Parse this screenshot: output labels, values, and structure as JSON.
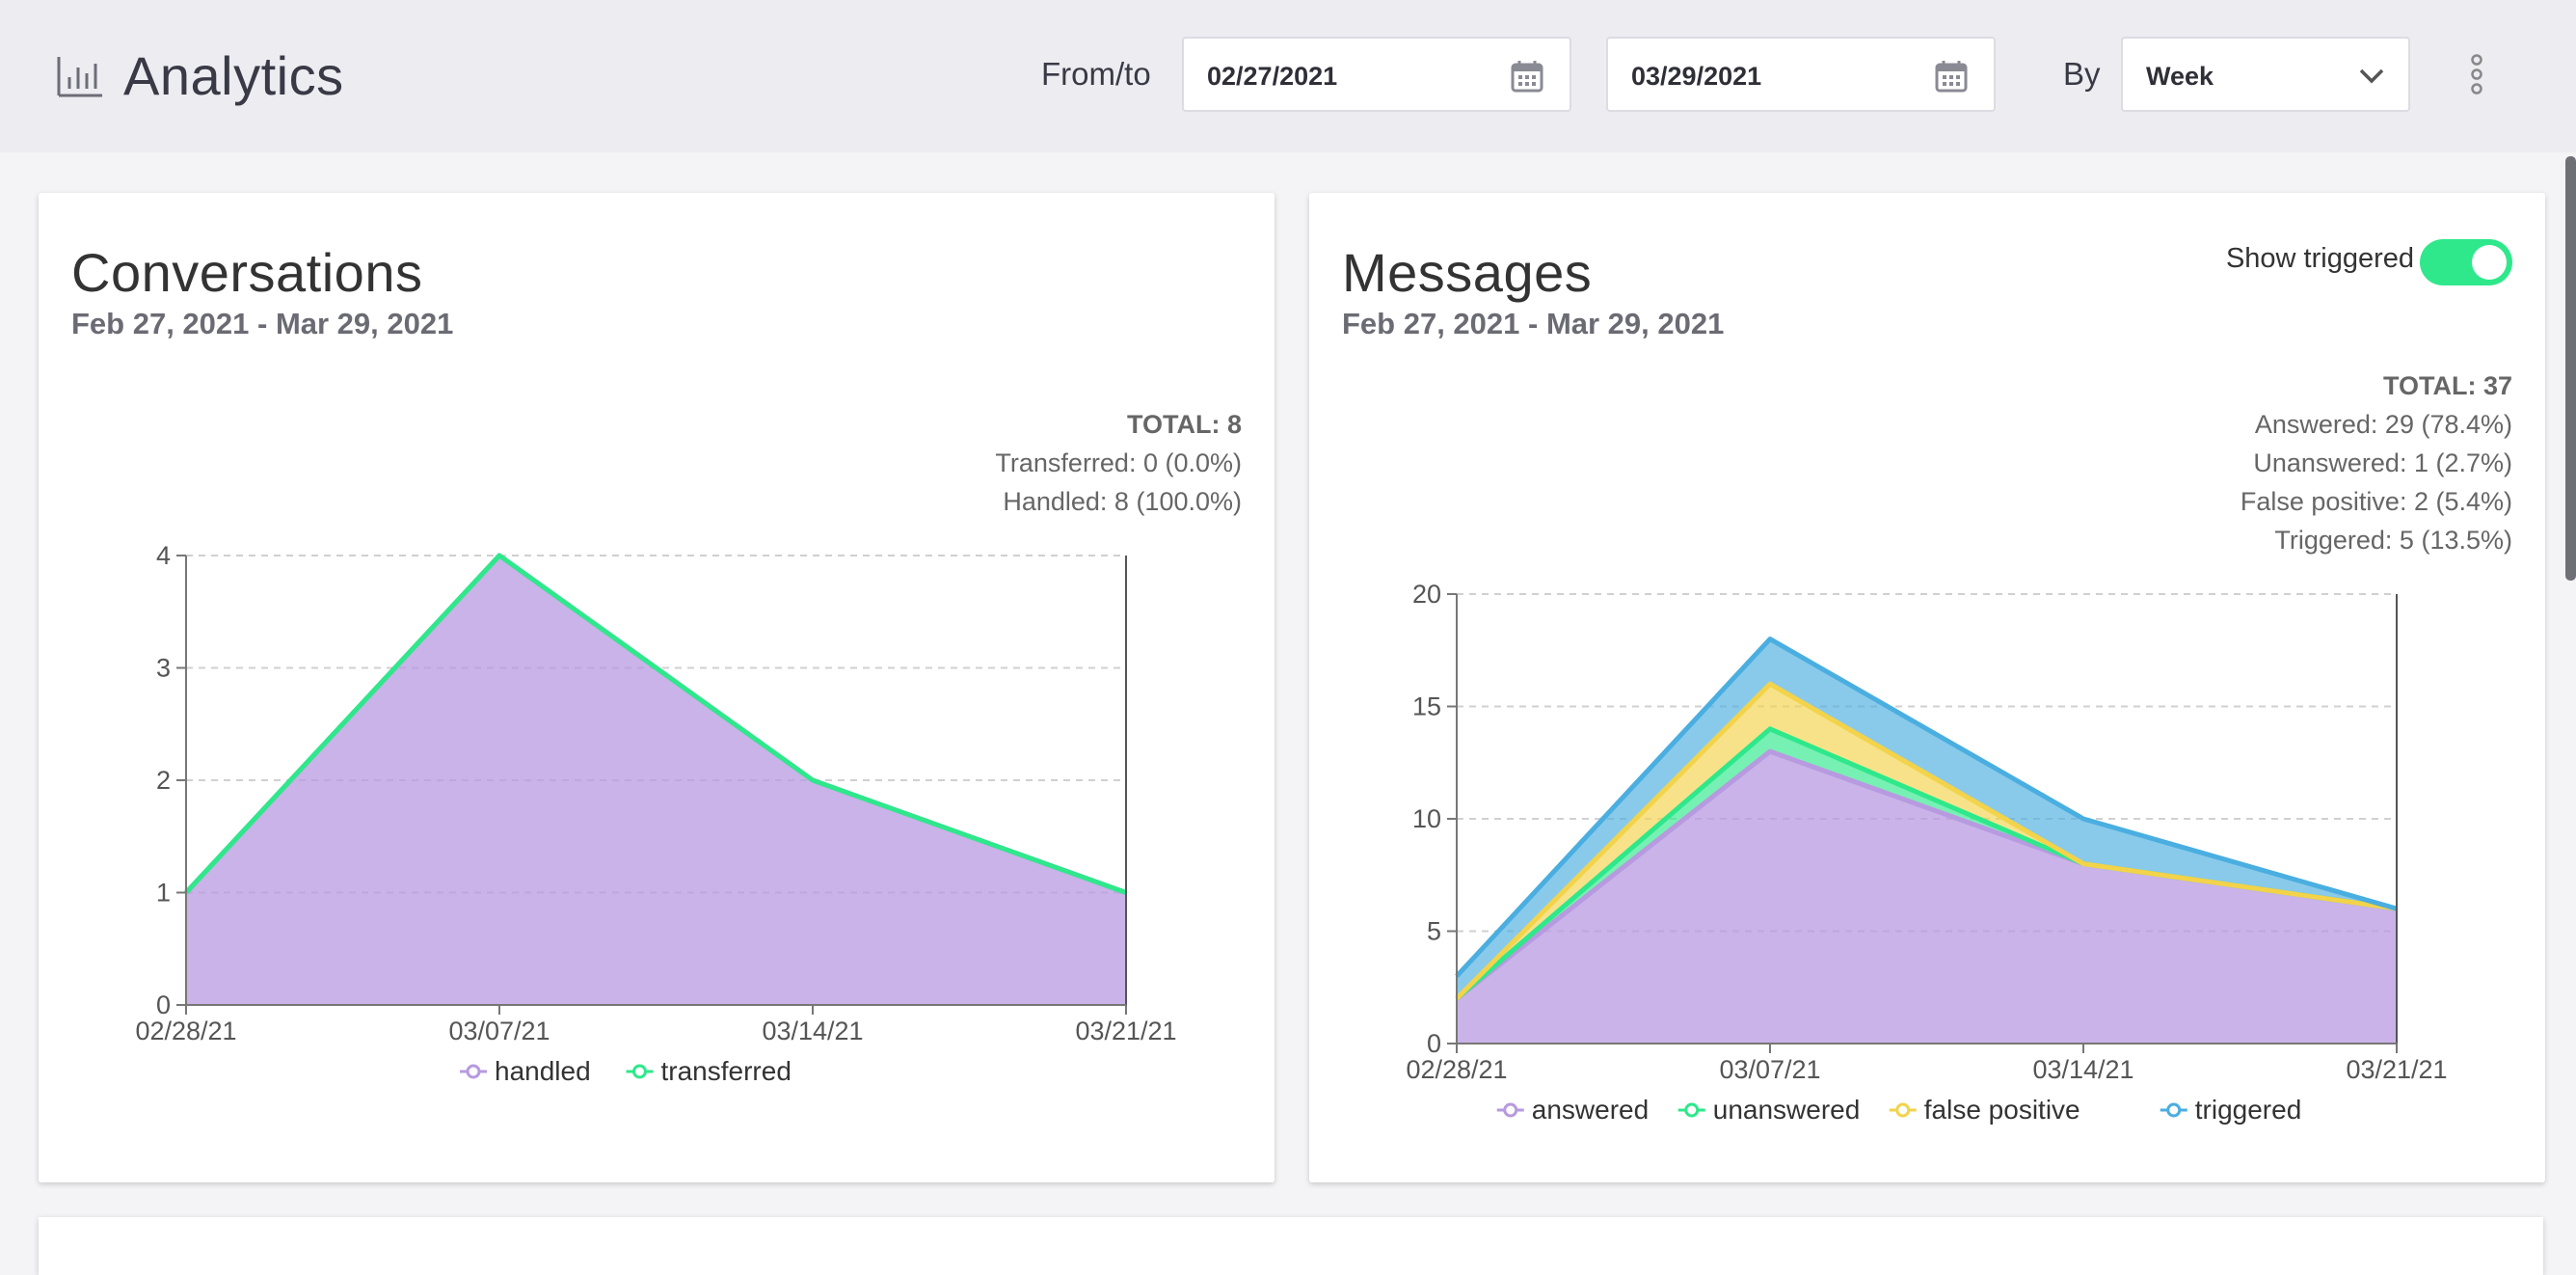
{
  "header": {
    "title": "Analytics",
    "from_to_label": "From/to",
    "from_date": "02/27/2021",
    "to_date": "03/29/2021",
    "by_label": "By",
    "by_value": "Week"
  },
  "conversations": {
    "title": "Conversations",
    "date_range": "Feb 27, 2021 - Mar 29, 2021",
    "total": "TOTAL: 8",
    "transferred": "Transferred: 0 (0.0%)",
    "handled": "Handled: 8 (100.0%)"
  },
  "messages": {
    "title": "Messages",
    "date_range": "Feb 27, 2021 - Mar 29, 2021",
    "toggle_label": "Show triggered",
    "toggle_on": true,
    "total": "TOTAL: 37",
    "answered": "Answered: 29 (78.4%)",
    "unanswered": "Unanswered: 1 (2.7%)",
    "false_positive": "False positive: 2 (5.4%)",
    "triggered": "Triggered: 5 (13.5%)"
  },
  "colors": {
    "accent": "#2ee88b",
    "handled": "#b79ae0",
    "transferred": "#2ee88b",
    "answered": "#b79ae0",
    "unanswered": "#2ee88b",
    "false_positive": "#f3d34a",
    "triggered": "#4aaee0"
  },
  "chart_data": [
    {
      "type": "area",
      "title": "Conversations",
      "x": [
        "02/28/21",
        "03/07/21",
        "03/14/21",
        "03/21/21"
      ],
      "ylim": [
        0,
        4
      ],
      "yticks": [
        "0",
        "1",
        "2",
        "3",
        "4"
      ],
      "grid": true,
      "legend": "bottom",
      "series": [
        {
          "name": "handled",
          "values": [
            1,
            4,
            2,
            1
          ]
        },
        {
          "name": "transferred",
          "values": [
            0,
            0,
            0,
            0
          ]
        }
      ]
    },
    {
      "type": "area",
      "stacked": true,
      "title": "Messages",
      "x": [
        "02/28/21",
        "03/07/21",
        "03/14/21",
        "03/21/21"
      ],
      "ylim": [
        0,
        20
      ],
      "yticks": [
        "0",
        "5",
        "10",
        "15",
        "20"
      ],
      "grid": true,
      "legend": "bottom",
      "series": [
        {
          "name": "answered",
          "values": [
            2,
            13,
            8,
            6
          ]
        },
        {
          "name": "unanswered",
          "values": [
            0,
            1,
            0,
            0
          ]
        },
        {
          "name": "false positive",
          "values": [
            0,
            2,
            0,
            0
          ]
        },
        {
          "name": "triggered",
          "values": [
            1,
            2,
            2,
            0
          ]
        }
      ]
    }
  ]
}
